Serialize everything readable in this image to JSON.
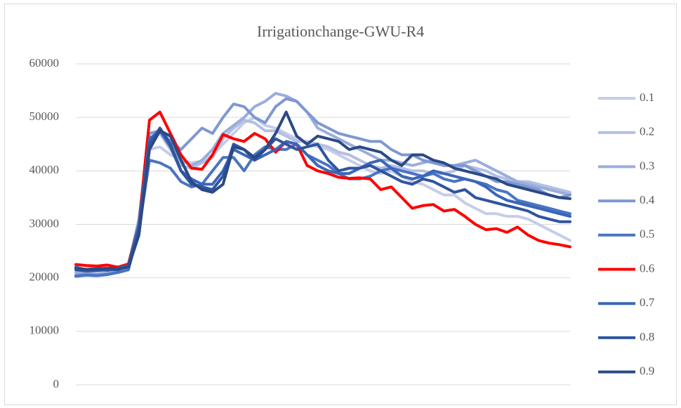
{
  "chart_data": {
    "type": "line",
    "title": "Irrigationchange-GWU-R4",
    "categories": [
      null,
      null,
      null,
      null,
      null,
      null,
      null,
      null,
      null,
      null,
      null,
      null,
      null,
      null,
      null,
      null,
      null,
      null,
      null,
      null,
      null,
      null,
      null,
      null,
      null,
      null,
      null,
      null,
      null,
      null,
      null,
      null,
      null,
      null,
      null,
      null,
      null,
      null,
      null,
      null,
      null,
      null,
      null,
      null,
      null,
      null,
      null,
      null
    ],
    "ylim": [
      0,
      60000
    ],
    "yticks": [
      0,
      10000,
      20000,
      30000,
      40000,
      50000,
      60000
    ],
    "grid": true,
    "legend": "right",
    "series": [
      {
        "name": "0.1",
        "color": "#c5cde9",
        "values": [
          21000,
          21200,
          21000,
          21300,
          21500,
          22000,
          30000,
          44000,
          44500,
          43000,
          42000,
          41500,
          41800,
          43000,
          45000,
          47000,
          49000,
          50000,
          48500,
          48000,
          47000,
          46000,
          45000,
          44500,
          44000,
          43000,
          42000,
          41000,
          40000,
          39500,
          40000,
          39000,
          38000,
          37500,
          36500,
          35500,
          35500,
          34000,
          33000,
          32000,
          32000,
          31500,
          31500,
          31000,
          30000,
          29000,
          28000,
          27000
        ]
      },
      {
        "name": "0.2",
        "color": "#b3bfe3",
        "values": [
          21500,
          21300,
          21400,
          21600,
          21700,
          22500,
          31000,
          46000,
          47000,
          44000,
          41000,
          40500,
          41500,
          42500,
          46000,
          48000,
          49500,
          49000,
          47500,
          47500,
          46500,
          45500,
          45500,
          45000,
          44500,
          43500,
          43000,
          42000,
          41000,
          40500,
          41000,
          40500,
          40000,
          40000,
          39500,
          39500,
          40000,
          41000,
          40500,
          40000,
          39000,
          38500,
          38000,
          38000,
          37500,
          37000,
          36500,
          36000
        ]
      },
      {
        "name": "0.3",
        "color": "#9aaedb",
        "values": [
          21000,
          21200,
          21300,
          21400,
          21600,
          22200,
          31000,
          47000,
          47500,
          45000,
          42000,
          41000,
          42000,
          44000,
          47000,
          48500,
          50000,
          52000,
          53000,
          54500,
          54000,
          53000,
          51000,
          48000,
          47000,
          46000,
          45000,
          44000,
          43000,
          42000,
          42000,
          41500,
          41000,
          41500,
          42000,
          41000,
          41000,
          41500,
          42000,
          41000,
          40000,
          39000,
          38000,
          37500,
          37000,
          36500,
          36000,
          35500
        ]
      },
      {
        "name": "0.4",
        "color": "#7f98d1",
        "values": [
          20500,
          20800,
          20600,
          20800,
          21000,
          21500,
          30000,
          47000,
          47500,
          45500,
          44000,
          46000,
          48000,
          47000,
          50000,
          52500,
          52000,
          50000,
          49000,
          52000,
          53500,
          53000,
          51000,
          49000,
          48000,
          47000,
          46500,
          46000,
          45500,
          45500,
          44000,
          43000,
          43000,
          42000,
          41500,
          41000,
          41000,
          41000,
          40000,
          39000,
          38000,
          38000,
          37500,
          37000,
          36500,
          35500,
          35000,
          35500
        ]
      },
      {
        "name": "0.5",
        "color": "#4a74c4",
        "values": [
          20300,
          20500,
          20400,
          20600,
          21000,
          21500,
          29000,
          42000,
          41500,
          40500,
          38000,
          37000,
          37500,
          40000,
          42500,
          42500,
          40000,
          43000,
          44500,
          44000,
          44000,
          45000,
          43000,
          42000,
          41000,
          39500,
          38500,
          38500,
          39000,
          40000,
          40500,
          40000,
          39500,
          39000,
          39500,
          38500,
          38000,
          38500,
          38000,
          37500,
          36500,
          36000,
          34500,
          34000,
          33500,
          33000,
          32500,
          32000
        ]
      },
      {
        "name": "0.6",
        "color": "#ff0000",
        "values": [
          22500,
          22300,
          22200,
          22400,
          22000,
          22600,
          30000,
          49500,
          51000,
          47000,
          43000,
          40500,
          40300,
          43000,
          46800,
          46000,
          45500,
          47000,
          46000,
          43500,
          45500,
          45000,
          41000,
          40000,
          39500,
          38800,
          38600,
          38700,
          38500,
          36500,
          37000,
          35000,
          33000,
          33500,
          33700,
          32500,
          32800,
          31500,
          30000,
          29000,
          29200,
          28500,
          29500,
          28000,
          27000,
          26500,
          26200,
          25800
        ]
      },
      {
        "name": "0.7",
        "color": "#3a66b8",
        "values": [
          22000,
          21500,
          21600,
          21400,
          21800,
          22300,
          30000,
          46000,
          47500,
          44500,
          40000,
          38500,
          37500,
          37500,
          40000,
          44000,
          43000,
          42000,
          43000,
          44000,
          45500,
          45000,
          43000,
          41000,
          40000,
          39500,
          39500,
          40500,
          41500,
          42000,
          40500,
          39000,
          38500,
          39000,
          40000,
          39500,
          39000,
          38500,
          38000,
          37000,
          35500,
          34500,
          34000,
          33500,
          33000,
          32500,
          32000,
          31500
        ]
      },
      {
        "name": "0.8",
        "color": "#2f559f",
        "values": [
          21500,
          21300,
          21400,
          21500,
          21500,
          22200,
          29000,
          45000,
          48000,
          45000,
          40000,
          37500,
          37000,
          36500,
          39000,
          45000,
          44000,
          42000,
          44000,
          46000,
          45000,
          44000,
          44500,
          45000,
          42000,
          40000,
          40500,
          40500,
          41000,
          40000,
          39000,
          38000,
          37500,
          38500,
          38000,
          37000,
          36000,
          36500,
          35000,
          34500,
          34000,
          33500,
          33000,
          32500,
          31500,
          31000,
          30500,
          30500
        ]
      },
      {
        "name": "0.9",
        "color": "#2a4a86",
        "values": [
          21800,
          21600,
          21700,
          21800,
          21700,
          22000,
          28000,
          44000,
          47500,
          46500,
          42000,
          38000,
          36500,
          36000,
          37500,
          44500,
          44000,
          42500,
          44000,
          47000,
          51000,
          46500,
          45000,
          46500,
          46000,
          45500,
          44000,
          44500,
          44000,
          43500,
          42000,
          41000,
          43000,
          43000,
          42000,
          41500,
          40500,
          40000,
          39500,
          39000,
          38500,
          37500,
          37000,
          36500,
          36000,
          35500,
          35000,
          34800
        ]
      }
    ]
  }
}
